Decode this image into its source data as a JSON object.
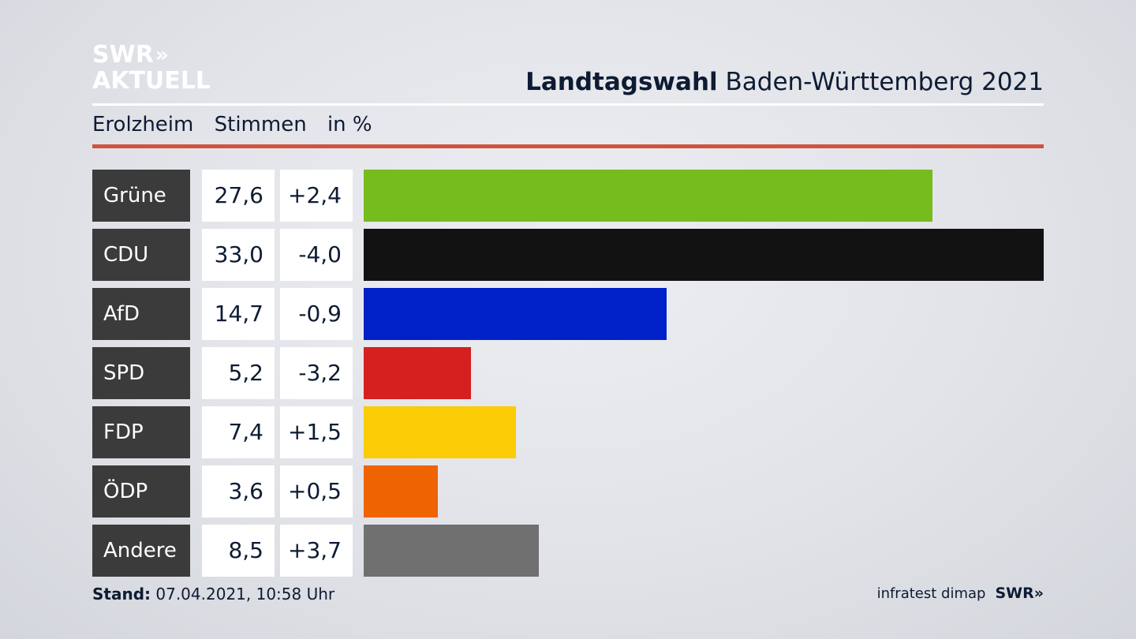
{
  "header": {
    "logo_line1": "SWR",
    "logo_arrows": "»",
    "logo_line2": "AKTUELL",
    "title_bold": "Landtagswahl",
    "title_rest": "Baden-Württemberg 2021"
  },
  "subheader": {
    "place": "Erolzheim",
    "metric": "Stimmen",
    "unit": "in %"
  },
  "chart_data": {
    "type": "bar",
    "orientation": "horizontal",
    "categories": [
      "Grüne",
      "CDU",
      "AfD",
      "SPD",
      "FDP",
      "ÖDP",
      "Andere"
    ],
    "values": [
      27.6,
      33.0,
      14.7,
      5.2,
      7.4,
      3.6,
      8.5
    ],
    "value_labels": [
      "27,6",
      "33,0",
      "14,7",
      "5,2",
      "7,4",
      "3,6",
      "8,5"
    ],
    "diffs": [
      "+2,4",
      "-4,0",
      "-0,9",
      "-3,2",
      "+1,5",
      "+0,5",
      "+3,7"
    ],
    "colors": [
      "#76bc1c",
      "#121212",
      "#0021c8",
      "#d61f1f",
      "#fbcb05",
      "#ef6400",
      "#707070"
    ],
    "xlim": [
      0,
      33.0
    ]
  },
  "footer": {
    "stand_label": "Stand:",
    "stand_value": "07.04.2021, 10:58 Uhr",
    "source": "infratest dimap",
    "brand": "SWR»"
  }
}
